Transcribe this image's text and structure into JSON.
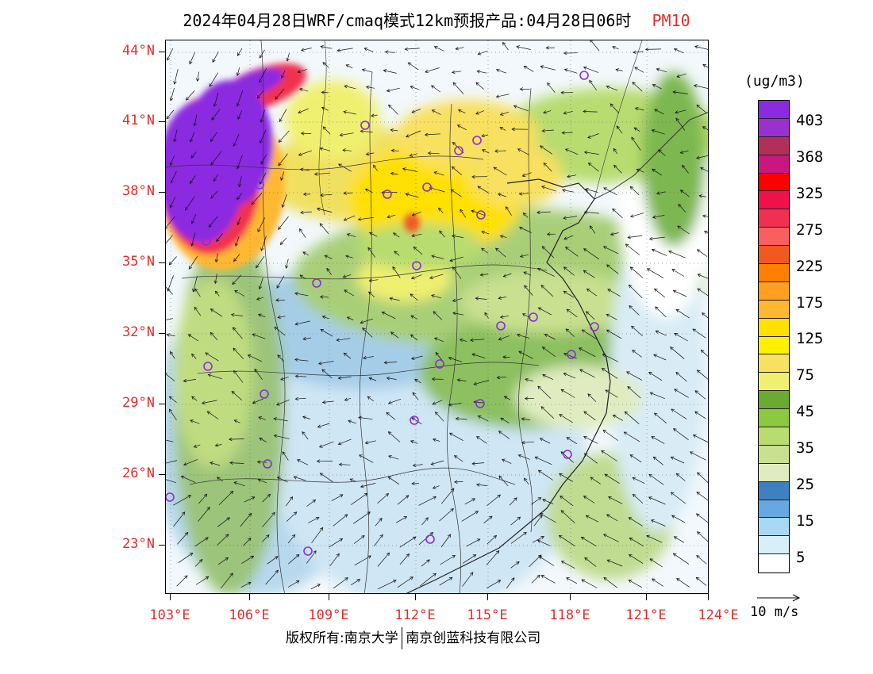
{
  "title": {
    "main": "2024年04月28日WRF/cmaq模式12km预报产品:04月28日06时",
    "variable": "PM10"
  },
  "map": {
    "lat_labels": [
      "44°N",
      "41°N",
      "38°N",
      "35°N",
      "32°N",
      "29°N",
      "26°N",
      "23°N"
    ],
    "lon_labels": [
      "103°E",
      "106°E",
      "109°E",
      "112°E",
      "115°E",
      "118°E",
      "121°E",
      "124°E"
    ]
  },
  "legend": {
    "unit": "(ug/m3)",
    "colors": [
      "#8b2be0",
      "#9b30d0",
      "#b0305a",
      "#c81880",
      "#ff0000",
      "#f0104a",
      "#f03050",
      "#f86060",
      "#f05a20",
      "#ff8000",
      "#ffa020",
      "#ffb830",
      "#ffe000",
      "#fff000",
      "#f8e060",
      "#f0f070",
      "#6aaa30",
      "#8cc840",
      "#b8dc70",
      "#c8e090",
      "#e0ecc0",
      "#4080c0",
      "#68a8e0",
      "#a8d8f4",
      "#d8eef8",
      "#ffffff"
    ],
    "labels": [
      "403",
      "368",
      "325",
      "275",
      "225",
      "175",
      "125",
      "75",
      "45",
      "35",
      "25",
      "15",
      "5"
    ]
  },
  "wind": {
    "reference_label": "10 m/s"
  },
  "copyright": {
    "left": "版权所有:南京大学",
    "right": "南京创蓝科技有限公司"
  },
  "palette": {
    "accent_red": "#e0302e",
    "station_marker": "#8b2be0"
  }
}
